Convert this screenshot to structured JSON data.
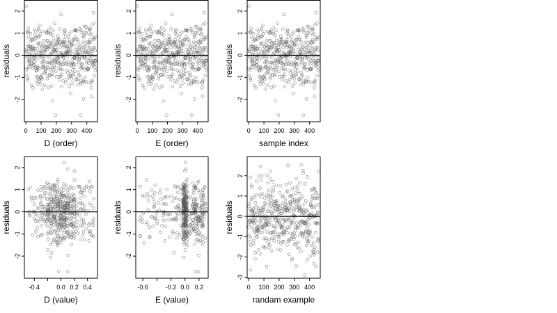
{
  "chart_data": [
    {
      "type": "scatter",
      "xlabel": "D (order)",
      "ylabel": "residuals",
      "xlim": [
        -10,
        470
      ],
      "ylim": [
        -3,
        2.5
      ],
      "xticks": [
        0,
        100,
        200,
        300,
        400
      ],
      "yticks": [
        -2,
        -1,
        0,
        1,
        2
      ],
      "reference_line_y": 0,
      "points": {
        "n": 460,
        "x_min": 1,
        "x_max": 460,
        "y_mean": 0,
        "y_sd": 0.8,
        "y_min": -2.7,
        "y_max": 2.3
      }
    },
    {
      "type": "scatter",
      "xlabel": "E (order)",
      "ylabel": "residuals",
      "xlim": [
        -10,
        470
      ],
      "ylim": [
        -3,
        2.5
      ],
      "xticks": [
        0,
        100,
        200,
        300,
        400
      ],
      "yticks": [
        -2,
        -1,
        0,
        1,
        2
      ],
      "reference_line_y": 0,
      "points": {
        "n": 460,
        "x_min": 1,
        "x_max": 460,
        "y_mean": 0,
        "y_sd": 0.8,
        "y_min": -2.7,
        "y_max": 2.3
      }
    },
    {
      "type": "scatter",
      "xlabel": "sample index",
      "ylabel": "residuals",
      "xlim": [
        -10,
        470
      ],
      "ylim": [
        -3,
        2.5
      ],
      "xticks": [
        0,
        100,
        200,
        300,
        400
      ],
      "yticks": [
        -2,
        -1,
        0,
        1,
        2
      ],
      "reference_line_y": 0,
      "points": {
        "n": 460,
        "x_min": 1,
        "x_max": 460,
        "y_mean": 0,
        "y_sd": 0.8,
        "y_min": -2.7,
        "y_max": 2.3
      }
    },
    {
      "type": "scatter",
      "xlabel": "D (value)",
      "ylabel": "residuals",
      "xlim": [
        -0.55,
        0.55
      ],
      "ylim": [
        -3,
        2.5
      ],
      "xticks": [
        -0.4,
        -0.2,
        0.0,
        0.2,
        0.4
      ],
      "xticklabels": [
        "-0.4",
        "",
        "0.0",
        "0.2",
        "0.4"
      ],
      "yticks": [
        -2,
        -1,
        0,
        1,
        2
      ],
      "reference_line_y": 0,
      "points": {
        "n": 460,
        "x_min": -0.5,
        "x_max": 0.5,
        "y_mean": 0,
        "y_sd": 0.8,
        "y_min": -2.7,
        "y_max": 2.3
      }
    },
    {
      "type": "scatter",
      "xlabel": "E (value)",
      "ylabel": "residuals",
      "xlim": [
        -0.7,
        0.33
      ],
      "ylim": [
        -3,
        2.5
      ],
      "xticks": [
        -0.6,
        -0.4,
        -0.2,
        0.0,
        0.2
      ],
      "xticklabels": [
        "-0.6",
        "",
        "-0.2",
        "0.0",
        "0.2"
      ],
      "yticks": [
        -2,
        -1,
        0,
        1,
        2
      ],
      "reference_line_y": 0,
      "points": {
        "n": 460,
        "x_min": -0.65,
        "x_max": 0.3,
        "y_mean": 0,
        "y_sd": 0.8,
        "y_min": -2.7,
        "y_max": 2.3
      }
    },
    {
      "type": "scatter",
      "xlabel": "randam example",
      "ylabel": "residuals",
      "xlim": [
        -10,
        470
      ],
      "ylim": [
        -3.05,
        2.95
      ],
      "xticks": [
        0,
        100,
        200,
        300,
        400
      ],
      "yticks": [
        -3,
        -2,
        -1,
        0,
        1,
        2
      ],
      "reference_line_y": 0,
      "points": {
        "n": 460,
        "x_min": 1,
        "x_max": 460,
        "y_mean": 0,
        "y_sd": 1.0,
        "y_min": -2.9,
        "y_max": 2.7
      }
    }
  ]
}
